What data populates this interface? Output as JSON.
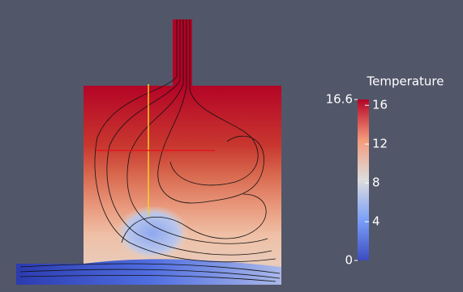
{
  "colorbar": {
    "title": "Temperature",
    "range": [
      0,
      16.6
    ],
    "ticks": [
      4,
      8,
      12,
      16
    ]
  }
}
